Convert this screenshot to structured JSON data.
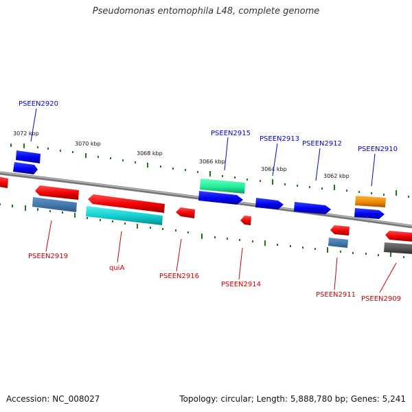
{
  "title": "Pseudomonas entomophila L48, complete genome",
  "footer": {
    "accession": "Accession: NC_008027",
    "topology": "Topology: circular; Length: 5,888,780 bp; Genes: 5,241"
  },
  "colors": {
    "forward_label": "#0000cc",
    "reverse_label": "#cc0000",
    "tick": "#1a7a1a",
    "backbone": "#888888"
  },
  "coordinates": [
    "3072 kbp",
    "3070 kbp",
    "3068 kbp",
    "3066 kbp",
    "3064 kbp",
    "3062 kbp"
  ],
  "gene_labels": {
    "forward": [
      "PSEEN2920",
      "PSEEN2915",
      "PSEEN2913",
      "PSEEN2912",
      "PSEEN2910"
    ],
    "reverse": [
      "PSEEN2919",
      "quiA",
      "PSEEN2916",
      "PSEEN2914",
      "PSEEN2911",
      "PSEEN2909"
    ]
  }
}
